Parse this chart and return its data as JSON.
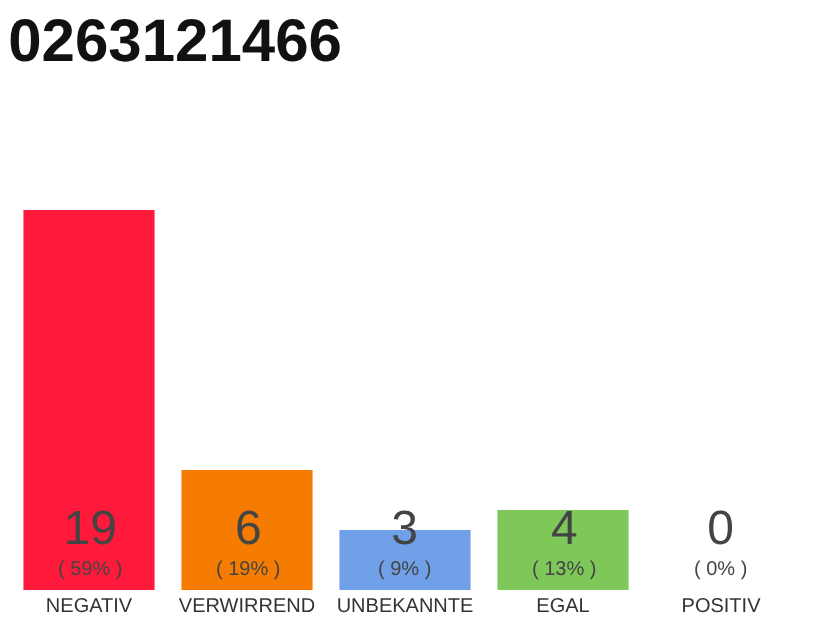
{
  "chart_data": {
    "type": "bar",
    "title": "0263121466",
    "categories": [
      "NEGATIV",
      "VERWIRREND",
      "UNBEKANNTE",
      "EGAL",
      "POSITIV"
    ],
    "values": [
      19,
      6,
      3,
      4,
      0
    ],
    "colors": [
      "#ff1a3c",
      "#f57c00",
      "#6fa0e8",
      "#7ec85a",
      "#cccccc"
    ],
    "value_labels": [
      "19\n( 59% )",
      "6\n( 19% )",
      "3\n( 9% )",
      "4\n( 13% )",
      "0\n( 0% )"
    ],
    "grid": false,
    "legend": false
  }
}
